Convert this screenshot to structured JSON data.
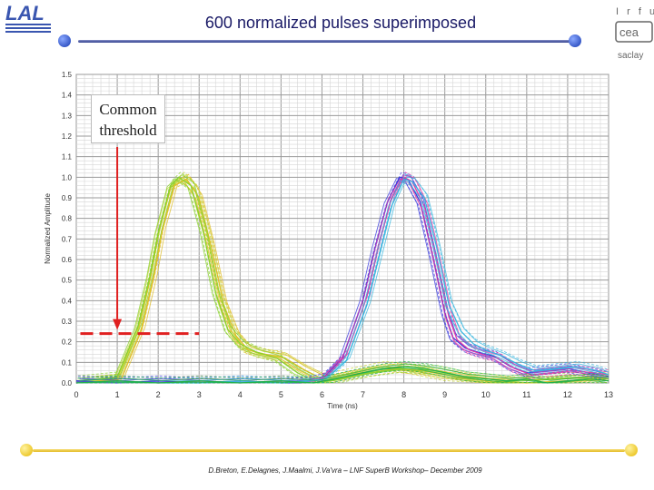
{
  "slide": {
    "title": "600 normalized pulses superimposed",
    "footer": "D.Breton, E.Delagnes, J.Maalmi, J.Va'vra – LNF SuperB Workshop– December 2009",
    "logos": [
      "lal-logo",
      "irfu-cea-saclay-logo"
    ],
    "irfu_logo_text": [
      "I r f u",
      "cea",
      "saclay"
    ],
    "colors": {
      "title": "#1a1a66",
      "accent_top": "#2a3a8c",
      "accent_bottom": "#e2b81a"
    }
  },
  "annotation": {
    "label_line1": "Common",
    "label_line2": "threshold",
    "threshold_y": 0.24,
    "threshold_x_range": [
      0.1,
      3.0
    ],
    "arrow_x": 1.0,
    "color": "#e02020"
  },
  "chart_data": {
    "type": "line",
    "title": "",
    "xlabel": "Time (ns)",
    "ylabel": "Normalized Amplitude",
    "xlim": [
      0,
      13
    ],
    "ylim": [
      0,
      1.5
    ],
    "grid": true,
    "xticks": [
      "0",
      "1",
      "2",
      "3",
      "4",
      "5",
      "6",
      "7",
      "8",
      "9",
      "10",
      "11",
      "12",
      "13"
    ],
    "yticks": [
      "0.0",
      "0.1",
      "0.2",
      "0.3",
      "0.4",
      "0.5",
      "0.6",
      "0.7",
      "0.8",
      "0.9",
      "1.0",
      "1.1",
      "1.2",
      "1.3",
      "1.4",
      "1.5"
    ],
    "series": [
      {
        "color": "#c8d43a",
        "x": [
          0,
          1.0,
          1.5,
          1.8,
          2.0,
          2.3,
          2.6,
          2.9,
          3.2,
          3.5,
          3.8,
          4.1,
          4.5,
          5.0,
          5.5,
          6.0,
          6.5,
          7.0,
          7.5,
          8.0,
          8.5,
          9.0,
          10.0,
          11.0,
          12.0,
          13.0
        ],
        "y": [
          0.0,
          0.02,
          0.25,
          0.5,
          0.72,
          0.95,
          1.0,
          0.94,
          0.72,
          0.42,
          0.25,
          0.17,
          0.14,
          0.13,
          0.07,
          0.02,
          0.04,
          0.06,
          0.08,
          0.07,
          0.05,
          0.03,
          0.01,
          0.0,
          0.01,
          0.03
        ]
      },
      {
        "color": "#e0be28",
        "x": [
          0,
          1.1,
          1.6,
          1.9,
          2.1,
          2.4,
          2.7,
          3.0,
          3.3,
          3.6,
          3.9,
          4.2,
          4.6,
          5.1,
          5.6,
          6.1,
          6.6,
          7.2,
          7.8,
          8.4,
          9.0,
          10.0,
          11.0,
          12.0,
          13.0
        ],
        "y": [
          0.0,
          0.02,
          0.26,
          0.52,
          0.74,
          0.96,
          0.99,
          0.9,
          0.66,
          0.38,
          0.23,
          0.16,
          0.14,
          0.12,
          0.06,
          0.01,
          0.03,
          0.05,
          0.07,
          0.06,
          0.04,
          0.01,
          0.0,
          0.01,
          0.02
        ]
      },
      {
        "color": "#8ad12e",
        "x": [
          0,
          1.0,
          1.5,
          1.8,
          2.0,
          2.3,
          2.5,
          2.8,
          3.1,
          3.4,
          3.7,
          4.0,
          4.4,
          4.9,
          5.4,
          5.9,
          6.5,
          7.2,
          8.0,
          8.8,
          9.5,
          10.5,
          11.5,
          12.5,
          13.0
        ],
        "y": [
          0.01,
          0.03,
          0.27,
          0.52,
          0.73,
          0.96,
          1.0,
          0.96,
          0.74,
          0.44,
          0.26,
          0.19,
          0.15,
          0.12,
          0.05,
          0.0,
          0.02,
          0.05,
          0.07,
          0.06,
          0.03,
          0.01,
          0.02,
          0.03,
          0.02
        ]
      },
      {
        "color": "#3a3adc",
        "x": [
          0,
          1.0,
          2.0,
          3.0,
          4.0,
          5.0,
          5.5,
          6.0,
          6.5,
          7.0,
          7.3,
          7.6,
          7.9,
          8.1,
          8.4,
          8.7,
          9.0,
          9.2,
          9.5,
          9.8,
          10.2,
          10.6,
          11.0,
          11.5,
          12.0,
          12.5,
          13.0
        ],
        "y": [
          0.01,
          0.0,
          0.01,
          0.0,
          0.01,
          0.0,
          0.0,
          0.02,
          0.12,
          0.4,
          0.66,
          0.88,
          1.0,
          0.99,
          0.88,
          0.62,
          0.34,
          0.22,
          0.17,
          0.15,
          0.13,
          0.08,
          0.05,
          0.06,
          0.07,
          0.05,
          0.03
        ]
      },
      {
        "color": "#e03aa8",
        "x": [
          0,
          1.0,
          2.0,
          3.0,
          4.0,
          5.0,
          5.6,
          6.1,
          6.6,
          7.1,
          7.4,
          7.7,
          8.0,
          8.2,
          8.5,
          8.8,
          9.1,
          9.3,
          9.6,
          9.9,
          10.3,
          10.7,
          11.1,
          11.6,
          12.1,
          12.6,
          13.0
        ],
        "y": [
          0.0,
          0.01,
          0.0,
          0.01,
          0.0,
          0.01,
          0.0,
          0.03,
          0.14,
          0.42,
          0.68,
          0.9,
          1.0,
          0.98,
          0.86,
          0.6,
          0.32,
          0.21,
          0.16,
          0.14,
          0.12,
          0.07,
          0.04,
          0.05,
          0.06,
          0.05,
          0.04
        ]
      },
      {
        "color": "#36b6e0",
        "x": [
          0,
          1.0,
          2.0,
          3.0,
          4.0,
          5.0,
          5.6,
          6.1,
          6.6,
          7.1,
          7.4,
          7.7,
          8.0,
          8.2,
          8.5,
          8.8,
          9.1,
          9.4,
          9.7,
          10.0,
          10.4,
          10.8,
          11.2,
          11.7,
          12.2,
          12.7,
          13.0
        ],
        "y": [
          0.0,
          0.01,
          0.0,
          0.0,
          0.01,
          0.0,
          0.01,
          0.02,
          0.11,
          0.38,
          0.62,
          0.86,
          0.99,
          0.98,
          0.9,
          0.66,
          0.38,
          0.25,
          0.19,
          0.16,
          0.13,
          0.09,
          0.06,
          0.07,
          0.08,
          0.06,
          0.04
        ]
      },
      {
        "color": "#22b04a",
        "x": [
          0,
          1.0,
          2.0,
          3.0,
          4.0,
          5.0,
          5.8,
          6.3,
          7.0,
          7.5,
          8.0,
          8.5,
          9.0,
          9.5,
          10.0,
          10.5,
          11.0,
          11.5,
          12.0,
          12.5,
          13.0
        ],
        "y": [
          0.0,
          0.01,
          0.0,
          0.01,
          0.0,
          0.01,
          0.0,
          0.02,
          0.05,
          0.07,
          0.08,
          0.07,
          0.05,
          0.03,
          0.02,
          0.01,
          0.02,
          0.0,
          0.01,
          0.02,
          0.01
        ]
      }
    ]
  }
}
